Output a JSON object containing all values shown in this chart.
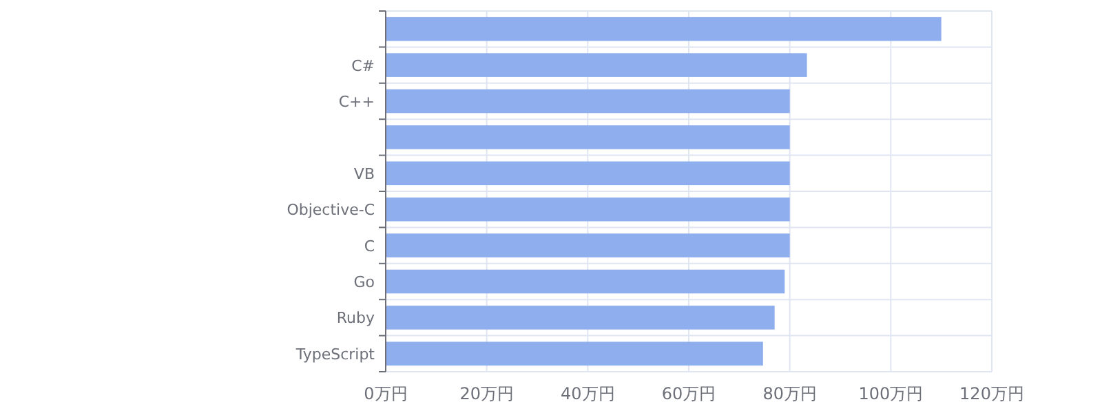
{
  "chart_data": {
    "type": "bar",
    "orientation": "horizontal",
    "categories": [
      null,
      "C#",
      "C++",
      null,
      "VB",
      "Objective-C",
      "C",
      "Go",
      "Ruby",
      "TypeScript"
    ],
    "values": [
      110,
      83.4,
      80,
      80,
      80,
      80,
      80,
      79,
      77,
      74.7
    ],
    "color": "#8eaeee",
    "xlim": [
      0,
      120
    ],
    "xticks": [
      {
        "value": 0,
        "label": "0万円"
      },
      {
        "value": 20,
        "label": "20万円"
      },
      {
        "value": 40,
        "label": "40万円"
      },
      {
        "value": 60,
        "label": "60万円"
      },
      {
        "value": 80,
        "label": "80万円"
      },
      {
        "value": 100,
        "label": "100万円"
      },
      {
        "value": 120,
        "label": "120万円"
      }
    ],
    "grid": true
  }
}
